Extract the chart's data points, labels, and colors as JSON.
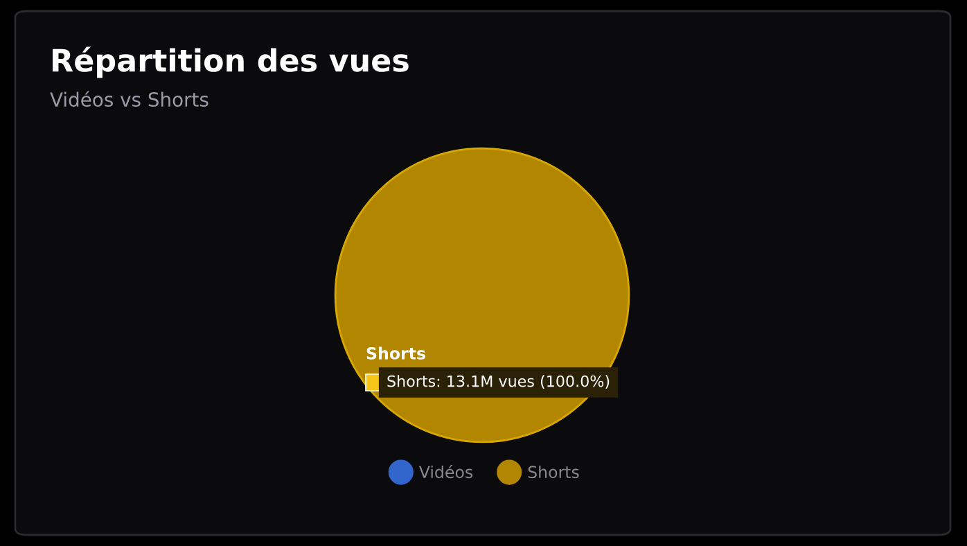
{
  "chart_data": {
    "type": "pie",
    "title": "Répartition des vues",
    "subtitle": "Vidéos vs Shorts",
    "categories": [
      "Vidéos",
      "Shorts"
    ],
    "values": [
      0,
      100
    ],
    "colors": [
      "#3366cc",
      "#b38600"
    ],
    "legend": "bottom",
    "annotations": [
      "Shorts",
      "Shorts: 13.1M vues (100.0%)"
    ]
  }
}
